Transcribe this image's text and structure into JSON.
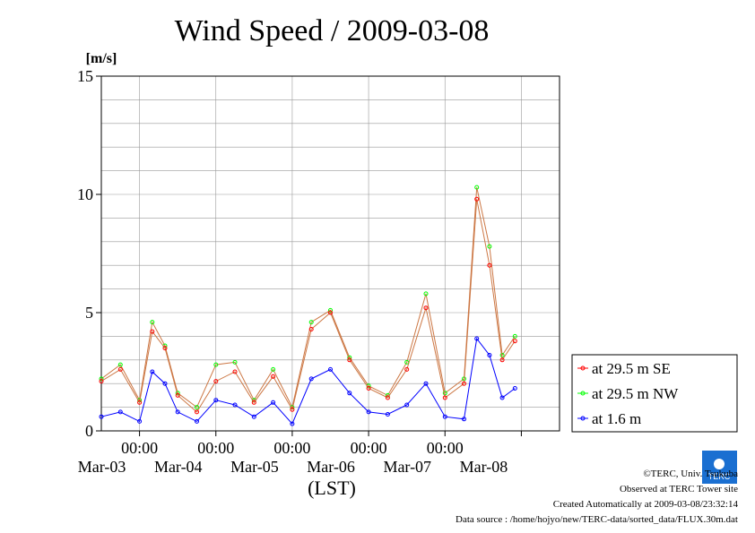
{
  "chart_data": {
    "type": "line",
    "title": "Wind Speed / 2009-03-08",
    "ylabel": "[m/s]",
    "xlabel": "(LST)",
    "ylim": [
      0,
      15
    ],
    "yticks": [
      "0",
      "5",
      "10",
      "15"
    ],
    "x_time_labels": [
      "00:00",
      "00:00",
      "00:00",
      "00:00",
      "00:00"
    ],
    "x_date_labels": [
      "Mar-03",
      "Mar-04",
      "Mar-05",
      "Mar-06",
      "Mar-07",
      "Mar-08"
    ],
    "grid": true,
    "legend_position": "right",
    "x_start": "2009-03-02 12:00",
    "x_end": "2009-03-08 12:00",
    "series": [
      {
        "name": "at 29.5 m SE",
        "color": "#ff0000",
        "x": [
          "2009-03-02 12:00",
          "2009-03-02 18:00",
          "2009-03-03 00:00",
          "2009-03-03 04:00",
          "2009-03-03 08:00",
          "2009-03-03 12:00",
          "2009-03-03 18:00",
          "2009-03-04 00:00",
          "2009-03-04 06:00",
          "2009-03-04 12:00",
          "2009-03-04 18:00",
          "2009-03-05 00:00",
          "2009-03-05 06:00",
          "2009-03-05 12:00",
          "2009-03-05 18:00",
          "2009-03-06 00:00",
          "2009-03-06 06:00",
          "2009-03-06 12:00",
          "2009-03-06 18:00",
          "2009-03-07 00:00",
          "2009-03-07 06:00",
          "2009-03-07 10:00",
          "2009-03-07 14:00",
          "2009-03-07 18:00",
          "2009-03-07 22:00"
        ],
        "y": [
          2.1,
          2.6,
          1.2,
          4.2,
          3.5,
          1.5,
          0.8,
          2.1,
          2.5,
          1.2,
          2.3,
          0.9,
          4.3,
          5.0,
          3.0,
          1.8,
          1.4,
          2.6,
          5.2,
          1.4,
          2.0,
          9.8,
          7.0,
          3.0,
          3.8
        ]
      },
      {
        "name": "at 29.5 m NW",
        "color": "#00ff00",
        "x": [
          "2009-03-02 12:00",
          "2009-03-02 18:00",
          "2009-03-03 00:00",
          "2009-03-03 04:00",
          "2009-03-03 08:00",
          "2009-03-03 12:00",
          "2009-03-03 18:00",
          "2009-03-04 00:00",
          "2009-03-04 06:00",
          "2009-03-04 12:00",
          "2009-03-04 18:00",
          "2009-03-05 00:00",
          "2009-03-05 06:00",
          "2009-03-05 12:00",
          "2009-03-05 18:00",
          "2009-03-06 00:00",
          "2009-03-06 06:00",
          "2009-03-06 12:00",
          "2009-03-06 18:00",
          "2009-03-07 00:00",
          "2009-03-07 06:00",
          "2009-03-07 10:00",
          "2009-03-07 14:00",
          "2009-03-07 18:00",
          "2009-03-07 22:00"
        ],
        "y": [
          2.2,
          2.8,
          1.3,
          4.6,
          3.6,
          1.6,
          1.0,
          2.8,
          2.9,
          1.3,
          2.6,
          1.0,
          4.6,
          5.1,
          3.1,
          1.9,
          1.5,
          2.9,
          5.8,
          1.6,
          2.2,
          10.3,
          7.8,
          3.2,
          4.0
        ]
      },
      {
        "name": "at 1.6 m",
        "color": "#0000ff",
        "x": [
          "2009-03-02 12:00",
          "2009-03-02 18:00",
          "2009-03-03 00:00",
          "2009-03-03 04:00",
          "2009-03-03 08:00",
          "2009-03-03 12:00",
          "2009-03-03 18:00",
          "2009-03-04 00:00",
          "2009-03-04 06:00",
          "2009-03-04 12:00",
          "2009-03-04 18:00",
          "2009-03-05 00:00",
          "2009-03-05 06:00",
          "2009-03-05 12:00",
          "2009-03-05 18:00",
          "2009-03-06 00:00",
          "2009-03-06 06:00",
          "2009-03-06 12:00",
          "2009-03-06 18:00",
          "2009-03-07 00:00",
          "2009-03-07 06:00",
          "2009-03-07 10:00",
          "2009-03-07 14:00",
          "2009-03-07 18:00",
          "2009-03-07 22:00"
        ],
        "y": [
          0.6,
          0.8,
          0.4,
          2.5,
          2.0,
          0.8,
          0.4,
          1.3,
          1.1,
          0.6,
          1.2,
          0.3,
          2.2,
          2.6,
          1.6,
          0.8,
          0.7,
          1.1,
          2.0,
          0.6,
          0.5,
          3.9,
          3.2,
          1.4,
          1.8
        ]
      }
    ]
  },
  "footer": {
    "copyright": "©TERC, Univ. Tsukuba",
    "observed": "Observed at TERC Tower site",
    "created": "Created Automatically at 2009-03-08/23:32:14",
    "source": "Data source : /home/hojyo/new/TERC-data/sorted_data/FLUX.30m.dat",
    "logo_text": "TERC"
  }
}
